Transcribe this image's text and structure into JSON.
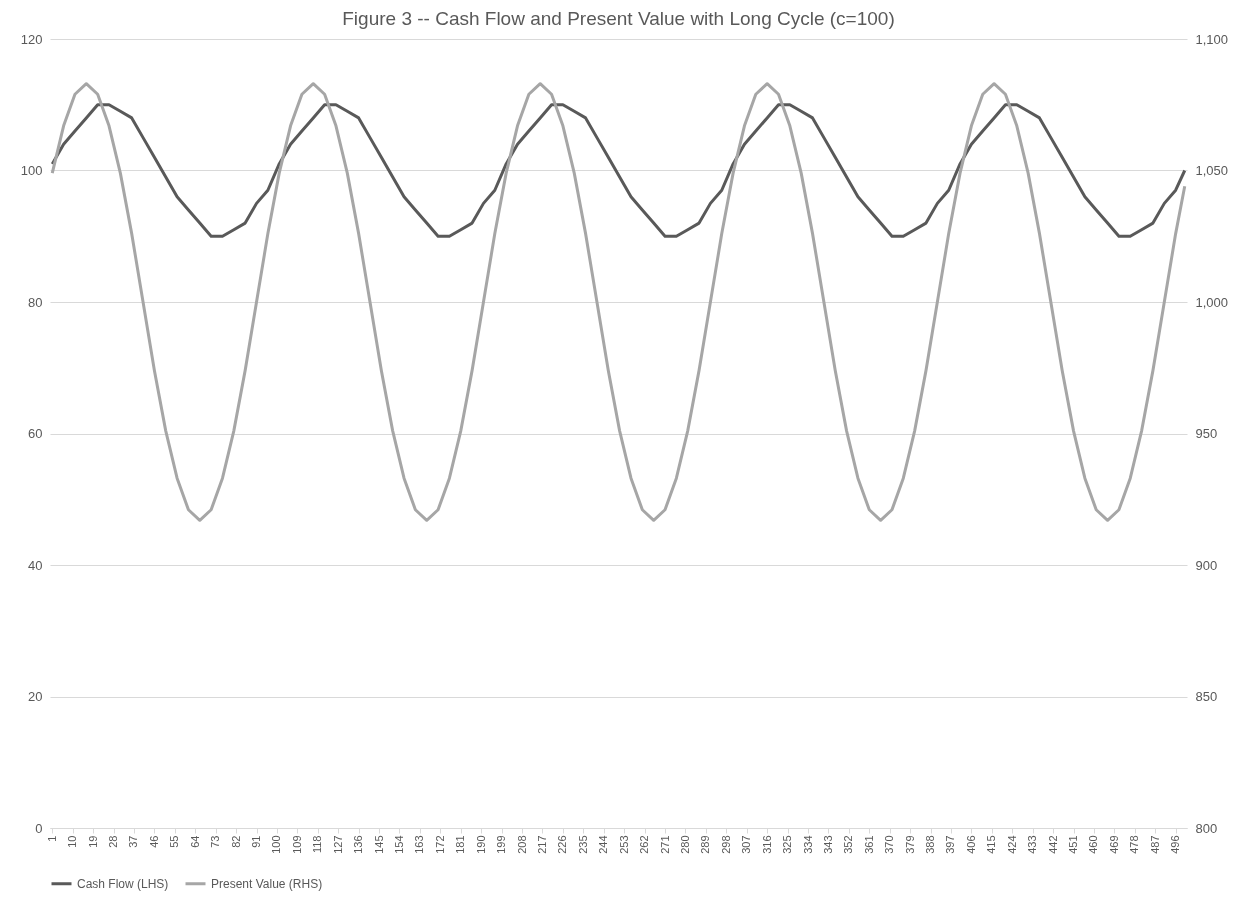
{
  "chart_data": {
    "type": "line",
    "title": "Figure 3 -- Cash Flow and Present Value with Long Cycle  (c=100)",
    "x": [
      1,
      6,
      11,
      16,
      21,
      26,
      31,
      36,
      41,
      46,
      51,
      56,
      61,
      66,
      71,
      76,
      81,
      86,
      91,
      96,
      101,
      106,
      111,
      116,
      121,
      126,
      131,
      136,
      141,
      146,
      151,
      156,
      161,
      166,
      171,
      176,
      181,
      186,
      191,
      196,
      201,
      206,
      211,
      216,
      221,
      226,
      231,
      236,
      241,
      246,
      251,
      256,
      261,
      266,
      271,
      276,
      281,
      286,
      291,
      296,
      301,
      306,
      311,
      316,
      321,
      326,
      331,
      336,
      341,
      346,
      351,
      356,
      361,
      366,
      371,
      376,
      381,
      386,
      391,
      396,
      401,
      406,
      411,
      416,
      421,
      426,
      431,
      436,
      441,
      446,
      451,
      456,
      461,
      466,
      471,
      476,
      481,
      486,
      491,
      496,
      500
    ],
    "series": [
      {
        "name": "Cash Flow (LHS)",
        "color": "#595959",
        "values": [
          101,
          104,
          106,
          108,
          110,
          110,
          109,
          108,
          105,
          102,
          99,
          96,
          94,
          92,
          90,
          90,
          91,
          92,
          95,
          97,
          101,
          104,
          106,
          108,
          110,
          110,
          109,
          108,
          105,
          102,
          99,
          96,
          94,
          92,
          90,
          90,
          91,
          92,
          95,
          97,
          101,
          104,
          106,
          108,
          110,
          110,
          109,
          108,
          105,
          102,
          99,
          96,
          94,
          92,
          90,
          90,
          91,
          92,
          95,
          97,
          101,
          104,
          106,
          108,
          110,
          110,
          109,
          108,
          105,
          102,
          99,
          96,
          94,
          92,
          90,
          90,
          91,
          92,
          95,
          97,
          101,
          104,
          106,
          108,
          110,
          110,
          109,
          108,
          105,
          102,
          99,
          96,
          94,
          92,
          90,
          90,
          91,
          92,
          95,
          97,
          100
        ]
      },
      {
        "name": "Present Value (RHS)",
        "color": "#a6a6a6",
        "axis": "y2",
        "values": [
          1049,
          1067,
          1079,
          1083,
          1079,
          1067,
          1049,
          1026,
          1000,
          974,
          951,
          933,
          921,
          917,
          921,
          933,
          951,
          974,
          1000,
          1026,
          1049,
          1067,
          1079,
          1083,
          1079,
          1067,
          1049,
          1026,
          1000,
          974,
          951,
          933,
          921,
          917,
          921,
          933,
          951,
          974,
          1000,
          1026,
          1049,
          1067,
          1079,
          1083,
          1079,
          1067,
          1049,
          1026,
          1000,
          974,
          951,
          933,
          921,
          917,
          921,
          933,
          951,
          974,
          1000,
          1026,
          1049,
          1067,
          1079,
          1083,
          1079,
          1067,
          1049,
          1026,
          1000,
          974,
          951,
          933,
          921,
          917,
          921,
          933,
          951,
          974,
          1000,
          1026,
          1049,
          1067,
          1079,
          1083,
          1079,
          1067,
          1049,
          1026,
          1000,
          974,
          951,
          933,
          921,
          917,
          921,
          933,
          951,
          974,
          1000,
          1026,
          1044
        ]
      }
    ],
    "xlim": [
      0,
      501
    ],
    "xticks": [
      1,
      10,
      19,
      28,
      37,
      46,
      55,
      64,
      73,
      82,
      91,
      100,
      109,
      118,
      127,
      136,
      145,
      154,
      163,
      172,
      181,
      190,
      199,
      208,
      217,
      226,
      235,
      244,
      253,
      262,
      271,
      280,
      289,
      298,
      307,
      316,
      325,
      334,
      343,
      352,
      361,
      370,
      379,
      388,
      397,
      406,
      415,
      424,
      433,
      442,
      451,
      460,
      469,
      478,
      487,
      496
    ],
    "ylim": [
      0,
      120
    ],
    "yticks": [
      0,
      20,
      40,
      60,
      80,
      100,
      120
    ],
    "y2lim": [
      800,
      1100
    ],
    "y2ticks": [
      800,
      850,
      900,
      950,
      {
        "value": 1000,
        "label": "1,000"
      },
      {
        "value": 1050,
        "label": "1,050"
      },
      {
        "value": 1100,
        "label": "1,100"
      }
    ],
    "grid": "y",
    "legend": "bottom",
    "marker": "none",
    "line_style": "solid"
  }
}
